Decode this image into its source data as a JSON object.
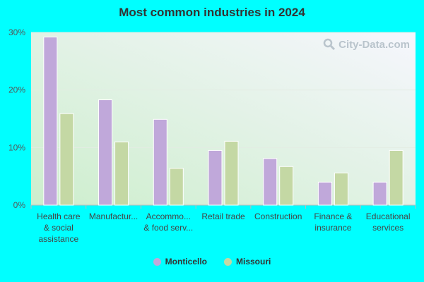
{
  "title": "Most common industries in 2024",
  "watermark": "City-Data.com",
  "chart_data": {
    "type": "bar",
    "title": "Most common industries in 2024",
    "categories": [
      [
        "Health care",
        "& social",
        "assistance"
      ],
      [
        "Manufactur..."
      ],
      [
        "Accommo...",
        "& food serv..."
      ],
      [
        "Retail trade"
      ],
      [
        "Construction"
      ],
      [
        "Finance &",
        "insurance"
      ],
      [
        "Educational",
        "services"
      ]
    ],
    "series": [
      {
        "name": "Monticello",
        "color": "#c0a8da",
        "values": [
          29.2,
          18.3,
          14.9,
          9.5,
          8.1,
          4.0,
          4.0
        ]
      },
      {
        "name": "Missouri",
        "color": "#c4d8a4",
        "values": [
          15.9,
          11.0,
          6.4,
          11.1,
          6.7,
          5.6,
          9.5
        ]
      }
    ],
    "yticks": [
      "0%",
      "10%",
      "20%",
      "30%"
    ],
    "ylim": [
      0,
      30
    ],
    "legend_position": "bottom"
  }
}
